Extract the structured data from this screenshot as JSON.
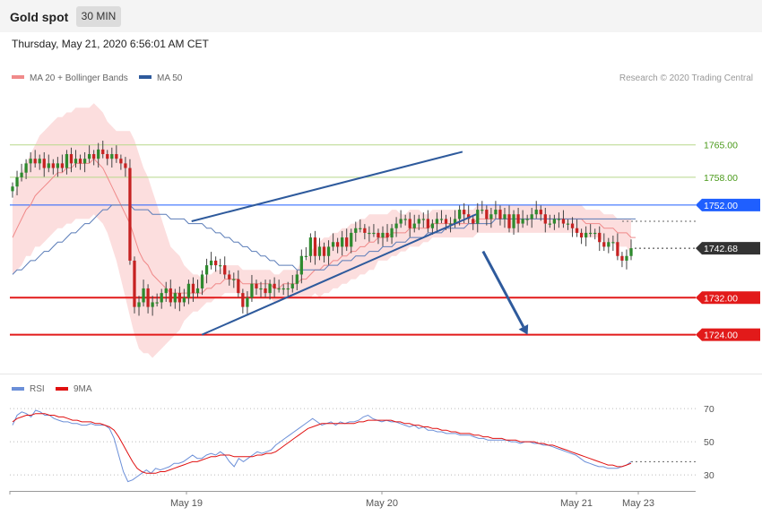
{
  "header": {
    "title": "Gold spot",
    "interval": "30 MIN"
  },
  "timestamp": "Thursday, May 21, 2020 6:56:01 AM CET",
  "legend": {
    "main": [
      {
        "label": "MA 20 + Bollinger Bands",
        "color": "#f08a8a"
      },
      {
        "label": "MA 50",
        "color": "#2e5a9c"
      }
    ],
    "rsi": [
      {
        "label": "RSI",
        "color": "#6b8fd8"
      },
      {
        "label": "9MA",
        "color": "#e01010"
      }
    ]
  },
  "credit": "Research © 2020 Trading Central",
  "colors": {
    "resistance": "#1f5fff",
    "support": "#e21a1a",
    "target_lines": "#b8d88a",
    "target_text": "#4a9a1a",
    "channel": "#2e5a9c",
    "candle_up": "#2e8a2e",
    "candle_down": "#c62222",
    "price_tag": "#333333"
  },
  "chart_data": [
    {
      "type": "candlestick",
      "title": "Gold spot",
      "x_ticks": [
        "May 19",
        "May 20",
        "May 21",
        "May 23"
      ],
      "ylim": [
        1716,
        1775
      ],
      "levels": [
        {
          "label": "1765.00",
          "value": 1765.0,
          "kind": "target"
        },
        {
          "label": "1758.00",
          "value": 1758.0,
          "kind": "target"
        },
        {
          "label": "1752.00",
          "value": 1752.0,
          "kind": "resistance"
        },
        {
          "label": "1742.68",
          "value": 1742.68,
          "kind": "last_price"
        },
        {
          "label": "1732.00",
          "value": 1732.0,
          "kind": "support"
        },
        {
          "label": "1724.00",
          "value": 1724.0,
          "kind": "support"
        }
      ],
      "closes": [
        1756,
        1758,
        1759,
        1761,
        1762,
        1761,
        1762,
        1760,
        1761,
        1760,
        1761,
        1760,
        1763,
        1761,
        1762,
        1761,
        1762,
        1763,
        1762,
        1764,
        1763,
        1762,
        1763,
        1762,
        1761,
        1760,
        1740,
        1730,
        1731,
        1734,
        1730,
        1731,
        1731,
        1733,
        1734,
        1731,
        1733,
        1731,
        1732,
        1735,
        1733,
        1734,
        1737,
        1739,
        1740,
        1739,
        1739,
        1737,
        1736,
        1736,
        1733,
        1730,
        1732,
        1735,
        1734,
        1734,
        1733,
        1735,
        1734,
        1734,
        1734,
        1734,
        1735,
        1737,
        1741,
        1741,
        1745,
        1741,
        1743,
        1741,
        1743,
        1744,
        1743,
        1745,
        1743,
        1746,
        1747,
        1747,
        1746,
        1746,
        1746,
        1745,
        1746,
        1745,
        1747,
        1748,
        1749,
        1749,
        1747,
        1748,
        1749,
        1749,
        1747,
        1748,
        1749,
        1749,
        1748,
        1748,
        1749,
        1751,
        1750,
        1749,
        1748,
        1751,
        1751,
        1749,
        1750,
        1751,
        1749,
        1750,
        1747,
        1750,
        1748,
        1749,
        1749,
        1750,
        1751,
        1750,
        1748,
        1748,
        1749,
        1749,
        1748,
        1748,
        1747,
        1746,
        1745,
        1746,
        1746,
        1746,
        1744,
        1743,
        1744,
        1744,
        1741,
        1740,
        1741,
        1742.68
      ],
      "ma20": [
        1745,
        1747,
        1749,
        1751,
        1752,
        1754,
        1755,
        1756,
        1757,
        1758,
        1759,
        1759,
        1760,
        1760,
        1761,
        1761,
        1761,
        1761,
        1762,
        1761,
        1760,
        1758,
        1756,
        1754,
        1752,
        1750,
        1748,
        1745,
        1742,
        1740,
        1739,
        1737,
        1736,
        1735,
        1734,
        1733,
        1733,
        1733,
        1733,
        1733,
        1733,
        1733,
        1733,
        1734,
        1734,
        1735,
        1735,
        1736,
        1736,
        1736,
        1736,
        1735,
        1735,
        1735,
        1735,
        1735,
        1735,
        1735,
        1734,
        1734,
        1735,
        1735,
        1735,
        1735,
        1736,
        1736,
        1737,
        1738,
        1738,
        1739,
        1739,
        1740,
        1740,
        1741,
        1741,
        1742,
        1742,
        1743,
        1743,
        1744,
        1744,
        1745,
        1745,
        1745,
        1746,
        1746,
        1746,
        1746,
        1747,
        1747,
        1747,
        1747,
        1747,
        1748,
        1748,
        1748,
        1748,
        1748,
        1748,
        1748,
        1748,
        1748,
        1748,
        1749,
        1749,
        1749,
        1749,
        1749,
        1749,
        1749,
        1749,
        1749,
        1749,
        1749,
        1749,
        1749,
        1749,
        1749,
        1749,
        1749,
        1749,
        1749,
        1749,
        1749,
        1749,
        1749,
        1749,
        1748,
        1748,
        1748,
        1748,
        1747,
        1747,
        1747,
        1746,
        1746,
        1746,
        1745,
        1745
      ],
      "ma50": [
        1737,
        1738,
        1738,
        1739,
        1740,
        1740,
        1741,
        1742,
        1742,
        1743,
        1744,
        1744,
        1745,
        1746,
        1746,
        1747,
        1748,
        1748,
        1749,
        1750,
        1751,
        1751,
        1752,
        1752,
        1752,
        1752,
        1752,
        1751,
        1751,
        1751,
        1751,
        1750,
        1750,
        1750,
        1750,
        1749,
        1749,
        1749,
        1749,
        1748,
        1748,
        1748,
        1748,
        1747,
        1747,
        1746,
        1746,
        1745,
        1745,
        1744,
        1744,
        1743,
        1743,
        1742,
        1742,
        1741,
        1741,
        1740,
        1740,
        1739,
        1739,
        1739,
        1739,
        1738,
        1738,
        1738,
        1738,
        1738,
        1738,
        1738,
        1739,
        1739,
        1739,
        1740,
        1740,
        1740,
        1741,
        1741,
        1741,
        1742,
        1742,
        1742,
        1743,
        1743,
        1743,
        1744,
        1744,
        1744,
        1745,
        1745,
        1745,
        1745,
        1746,
        1746,
        1746,
        1746,
        1747,
        1747,
        1747,
        1747,
        1747,
        1748,
        1748,
        1748,
        1748,
        1748,
        1748,
        1749,
        1749,
        1749,
        1749,
        1749,
        1749,
        1749,
        1749,
        1749,
        1749,
        1749,
        1749,
        1749,
        1749,
        1749,
        1749,
        1749,
        1749,
        1749,
        1749,
        1749,
        1749,
        1749,
        1749,
        1749,
        1749,
        1749,
        1749,
        1749,
        1749,
        1749,
        1749
      ],
      "bb_width": [
        8,
        9,
        10,
        10,
        11,
        11,
        12,
        12,
        12,
        12,
        12,
        12,
        12,
        12,
        12,
        12,
        12,
        12,
        12,
        12,
        12,
        12,
        13,
        14,
        16,
        18,
        20,
        21,
        21,
        20,
        19,
        18,
        16,
        14,
        12,
        10,
        9,
        8,
        6,
        5,
        4,
        4,
        3,
        3,
        3,
        3,
        3,
        3,
        3,
        3,
        3,
        3,
        3,
        3,
        3,
        3,
        3,
        3,
        3,
        3,
        3,
        3,
        3,
        3,
        4,
        4,
        5,
        5,
        6,
        6,
        6,
        6,
        6,
        6,
        6,
        6,
        6,
        6,
        6,
        6,
        6,
        5,
        5,
        5,
        5,
        5,
        4,
        4,
        4,
        4,
        4,
        3,
        3,
        3,
        3,
        3,
        3,
        3,
        3,
        3,
        3,
        3,
        3,
        3,
        3,
        3,
        3,
        3,
        3,
        3,
        3,
        3,
        3,
        3,
        3,
        3,
        3,
        3,
        3,
        3,
        3,
        3,
        3,
        3,
        3,
        3,
        3,
        3,
        3,
        3,
        3,
        3,
        3,
        3,
        3,
        3,
        3,
        4,
        4
      ],
      "channel": {
        "upper": {
          "from": {
            "x": 0.265,
            "y": 1748.5
          },
          "to": {
            "x": 0.66,
            "y": 1763.5
          }
        },
        "lower": {
          "from": {
            "x": 0.28,
            "y": 1724.0
          },
          "to": {
            "x": 0.68,
            "y": 1750.0
          }
        }
      },
      "projection": {
        "from": {
          "x": 0.69,
          "y": 1742.0
        },
        "to": {
          "x": 0.755,
          "y": 1724.0
        }
      }
    },
    {
      "type": "line",
      "title": "RSI",
      "yticks": [
        70,
        50,
        30
      ],
      "ylim": [
        22,
        76
      ],
      "series": [
        {
          "name": "RSI",
          "values": [
            60,
            66,
            68,
            67,
            65,
            69,
            68,
            66,
            66,
            64,
            63,
            62,
            62,
            61,
            61,
            60,
            60,
            61,
            60,
            60,
            60,
            58,
            52,
            42,
            32,
            26,
            27,
            29,
            31,
            33,
            31,
            34,
            33,
            34,
            35,
            37,
            37,
            38,
            40,
            42,
            40,
            40,
            42,
            43,
            42,
            44,
            42,
            38,
            35,
            40,
            38,
            40,
            42,
            44,
            43,
            44,
            45,
            48,
            50,
            52,
            54,
            56,
            58,
            60,
            62,
            64,
            62,
            60,
            61,
            62,
            60,
            62,
            61,
            62,
            62,
            63,
            65,
            66,
            64,
            63,
            62,
            63,
            62,
            62,
            61,
            60,
            59,
            60,
            58,
            59,
            57,
            57,
            56,
            56,
            55,
            55,
            55,
            54,
            54,
            54,
            53,
            52,
            52,
            51,
            51,
            51,
            51,
            51,
            50,
            50,
            49,
            50,
            50,
            49,
            49,
            48,
            48,
            47,
            46,
            45,
            44,
            43,
            42,
            40,
            38,
            37,
            36,
            35,
            35,
            34,
            34,
            34,
            35,
            36,
            38
          ]
        },
        {
          "name": "9MA",
          "values": [
            62,
            64,
            65,
            66,
            66,
            67,
            67,
            67,
            66,
            66,
            65,
            65,
            64,
            63,
            63,
            62,
            62,
            62,
            61,
            61,
            60,
            59,
            57,
            53,
            48,
            43,
            38,
            34,
            32,
            31,
            31,
            31,
            32,
            32,
            33,
            34,
            35,
            36,
            37,
            38,
            38,
            39,
            40,
            41,
            41,
            42,
            42,
            42,
            41,
            41,
            41,
            41,
            41,
            42,
            42,
            43,
            43,
            44,
            46,
            48,
            50,
            52,
            54,
            56,
            58,
            59,
            60,
            61,
            61,
            61,
            61,
            61,
            61,
            61,
            61,
            62,
            62,
            63,
            63,
            63,
            63,
            63,
            63,
            62,
            62,
            61,
            61,
            60,
            60,
            59,
            59,
            58,
            58,
            57,
            57,
            56,
            56,
            55,
            55,
            55,
            54,
            54,
            53,
            53,
            52,
            52,
            52,
            51,
            51,
            51,
            50,
            50,
            50,
            50,
            49,
            49,
            48,
            48,
            47,
            46,
            45,
            44,
            43,
            42,
            41,
            40,
            39,
            38,
            37,
            36,
            36,
            35,
            35,
            36,
            37
          ]
        }
      ]
    }
  ]
}
